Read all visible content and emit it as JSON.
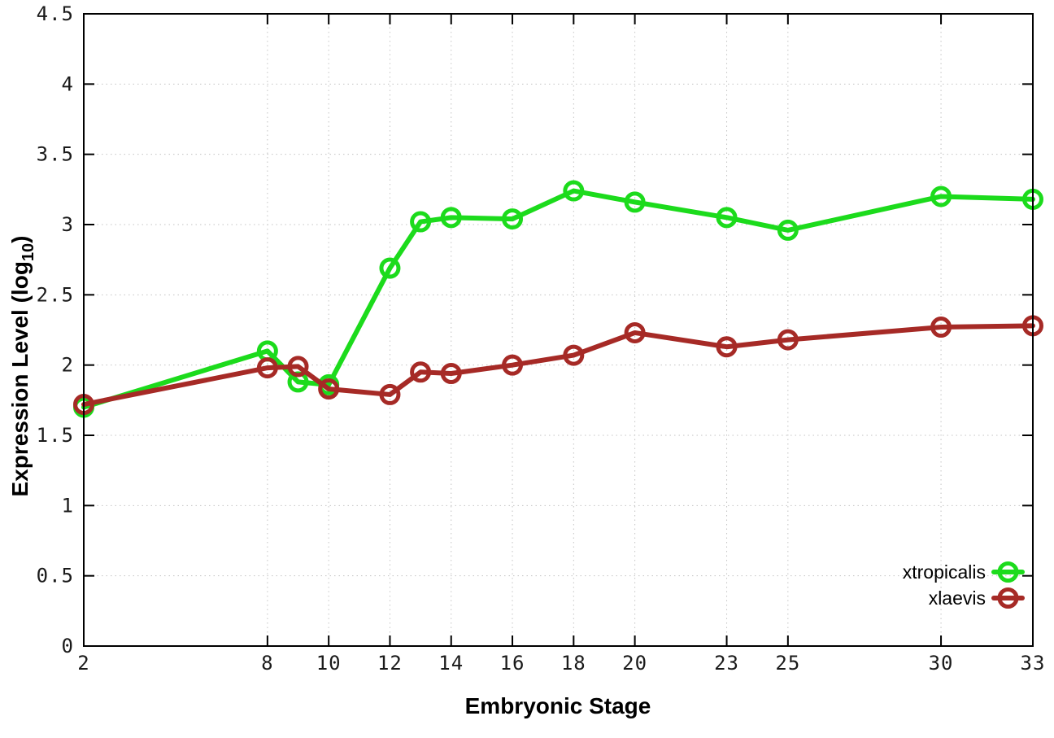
{
  "chart_data": {
    "type": "line",
    "title": "",
    "xlabel": "Embryonic Stage",
    "ylabel": {
      "main": "Expression Level (log",
      "sub": "10",
      "end": ")"
    },
    "xlim": [
      2,
      33
    ],
    "ylim": [
      0,
      4.5
    ],
    "grid": true,
    "grid_style": "dotted",
    "legend_position": "bottom-right",
    "x_ticks": [
      2,
      8,
      10,
      12,
      14,
      16,
      18,
      20,
      23,
      25,
      30,
      33
    ],
    "x_tick_labels": [
      "2",
      "8",
      "10",
      "12",
      "14",
      "16",
      "18",
      "20",
      "23",
      "25",
      "30",
      "33"
    ],
    "y_ticks": [
      0,
      0.5,
      1,
      1.5,
      2,
      2.5,
      3,
      3.5,
      4,
      4.5
    ],
    "y_tick_labels": [
      "0",
      "0.5",
      "1",
      "1.5",
      "2",
      "2.5",
      "3",
      "3.5",
      "4",
      "4.5"
    ],
    "series": [
      {
        "name": "xtropicalis",
        "color": "#1cdb1c",
        "marker": "open-circle",
        "x": [
          2,
          8,
          9,
          10,
          12,
          13,
          14,
          16,
          18,
          20,
          23,
          25,
          30,
          33
        ],
        "y": [
          1.7,
          2.1,
          1.88,
          1.86,
          2.69,
          3.02,
          3.05,
          3.04,
          3.24,
          3.16,
          3.05,
          2.96,
          3.2,
          3.18
        ]
      },
      {
        "name": "xlaevis",
        "color": "#a62a26",
        "marker": "open-circle",
        "x": [
          2,
          8,
          9,
          10,
          12,
          13,
          14,
          16,
          18,
          20,
          23,
          25,
          30,
          33
        ],
        "y": [
          1.72,
          1.98,
          1.99,
          1.83,
          1.79,
          1.95,
          1.94,
          2.0,
          2.07,
          2.23,
          2.13,
          2.18,
          2.27,
          2.28
        ]
      }
    ]
  }
}
